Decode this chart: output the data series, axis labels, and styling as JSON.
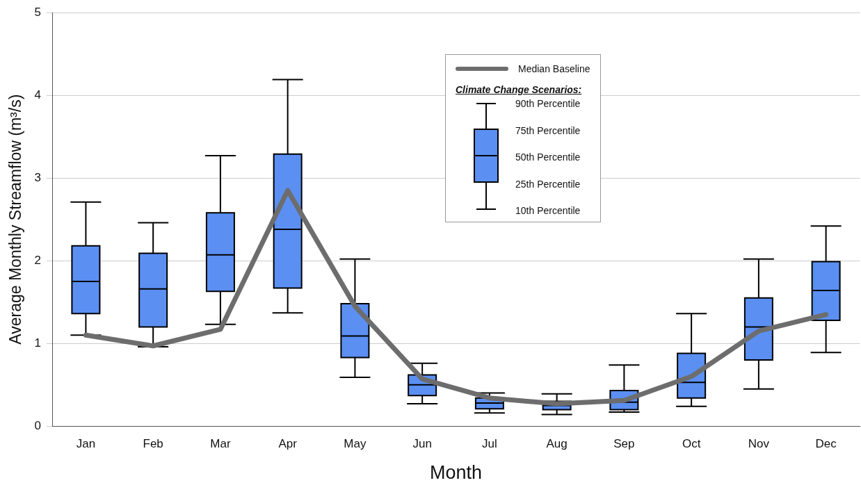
{
  "chart_data": {
    "type": "box",
    "xlabel": "Month",
    "ylabel": "Average Monthly Streamflow (m³/s)",
    "categories": [
      "Jan",
      "Feb",
      "Mar",
      "Apr",
      "May",
      "Jun",
      "Jul",
      "Aug",
      "Sep",
      "Oct",
      "Nov",
      "Dec"
    ],
    "ylim": [
      0,
      5
    ],
    "yticks": [
      0,
      1,
      2,
      3,
      4,
      5
    ],
    "grid": "y",
    "legend": "top right",
    "legend_title": "Climate Change Scenarios:",
    "annotations": [
      "90th Percentile",
      "75th Percentile",
      "50th Percentile",
      "25th Percentile",
      "10th Percentile"
    ],
    "series": [
      {
        "color": "#5b8ff2",
        "boxes": [
          {
            "low": 1.1,
            "q1": 1.36,
            "median": 1.75,
            "q3": 2.18,
            "high": 2.71
          },
          {
            "low": 0.96,
            "q1": 1.2,
            "median": 1.66,
            "q3": 2.09,
            "high": 2.46
          },
          {
            "low": 1.23,
            "q1": 1.63,
            "median": 2.07,
            "q3": 2.58,
            "high": 3.27
          },
          {
            "low": 1.37,
            "q1": 1.67,
            "median": 2.38,
            "q3": 3.29,
            "high": 4.19
          },
          {
            "low": 0.59,
            "q1": 0.83,
            "median": 1.09,
            "q3": 1.48,
            "high": 2.02
          },
          {
            "low": 0.27,
            "q1": 0.37,
            "median": 0.5,
            "q3": 0.62,
            "high": 0.76
          },
          {
            "low": 0.16,
            "q1": 0.21,
            "median": 0.28,
            "q3": 0.34,
            "high": 0.4
          },
          {
            "low": 0.14,
            "q1": 0.2,
            "median": 0.25,
            "q3": 0.3,
            "high": 0.39
          },
          {
            "low": 0.17,
            "q1": 0.2,
            "median": 0.29,
            "q3": 0.43,
            "high": 0.74
          },
          {
            "low": 0.24,
            "q1": 0.34,
            "median": 0.53,
            "q3": 0.88,
            "high": 1.36
          },
          {
            "low": 0.45,
            "q1": 0.8,
            "median": 1.2,
            "q3": 1.55,
            "high": 2.02
          },
          {
            "low": 0.89,
            "q1": 1.28,
            "median": 1.64,
            "q3": 1.99,
            "high": 2.42
          }
        ]
      },
      {
        "type": "line",
        "name": "Median Baseline",
        "color": "#6d6d6d",
        "values": [
          1.1,
          0.97,
          1.17,
          2.85,
          1.45,
          0.57,
          0.34,
          0.27,
          0.31,
          0.6,
          1.15,
          1.35
        ]
      }
    ]
  }
}
